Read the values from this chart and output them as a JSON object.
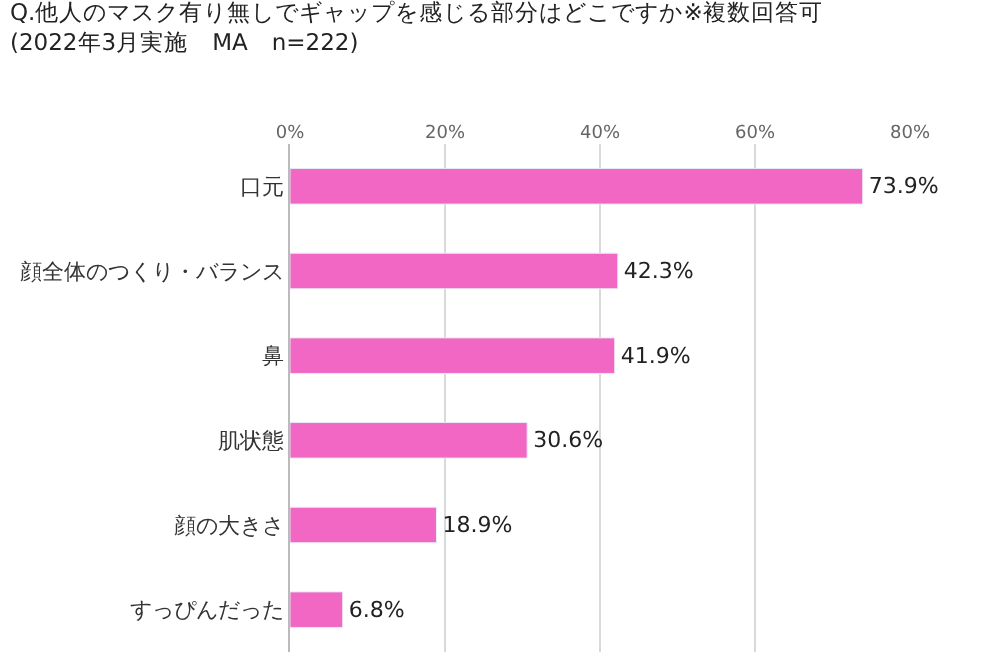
{
  "chart_data": {
    "type": "bar",
    "orientation": "horizontal",
    "title": "Q.他人のマスク有り無しでギャップを感じる部分はどこですか※複数回答可",
    "subtitle": "(2022年3月実施　MA　n=222)",
    "categories": [
      "口元",
      "顔全体のつくり・バランス",
      "鼻",
      "肌状態",
      "顔の大きさ",
      "すっぴんだった"
    ],
    "values": [
      73.9,
      42.3,
      41.9,
      30.6,
      18.9,
      6.8
    ],
    "value_labels": [
      "73.9%",
      "42.3%",
      "41.9%",
      "30.6%",
      "18.9%",
      "6.8%"
    ],
    "color": "#f266c4",
    "xlim": [
      0,
      80
    ],
    "xticks": [
      {
        "value": 0,
        "label": "0%"
      },
      {
        "value": 20,
        "label": "20%"
      },
      {
        "value": 40,
        "label": "40%"
      },
      {
        "value": 60,
        "label": "60%"
      },
      {
        "value": 80,
        "label": "80%"
      }
    ],
    "grid": "x",
    "legend": false
  }
}
